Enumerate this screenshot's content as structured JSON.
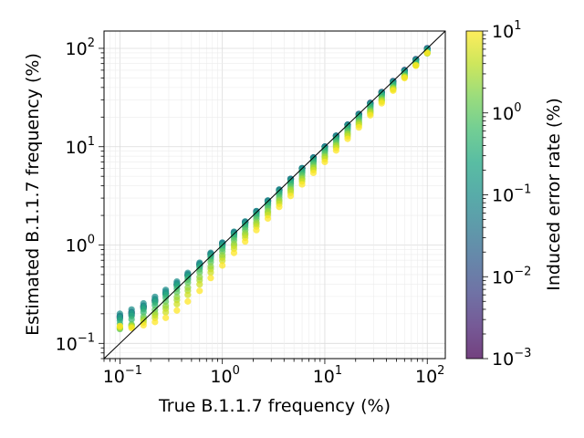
{
  "chart_data": {
    "type": "scatter",
    "title": "",
    "xlabel": "True B.1.1.7 frequency (%)",
    "ylabel": "Estimated B.1.1.7 frequency (%)",
    "x_scale": "log",
    "y_scale": "log",
    "xlim": [
      0.07,
      150
    ],
    "ylim": [
      0.07,
      150
    ],
    "grid": true,
    "x_ticks": [
      {
        "value": 0.1,
        "base": "10",
        "exp": "−1"
      },
      {
        "value": 1,
        "base": "10",
        "exp": "0"
      },
      {
        "value": 10,
        "base": "10",
        "exp": "1"
      },
      {
        "value": 100,
        "base": "10",
        "exp": "2"
      }
    ],
    "y_ticks": [
      {
        "value": 0.1,
        "base": "10",
        "exp": "−1"
      },
      {
        "value": 1,
        "base": "10",
        "exp": "0"
      },
      {
        "value": 10,
        "base": "10",
        "exp": "1"
      },
      {
        "value": 100,
        "base": "10",
        "exp": "2"
      }
    ],
    "reference_line": {
      "label": "y = x",
      "color": "#000000"
    },
    "colorbar": {
      "label": "Induced error rate (%)",
      "scale": "log",
      "range": [
        0.001,
        10
      ],
      "colormap": "viridis",
      "ticks": [
        {
          "value": 0.001,
          "base": "10",
          "exp": "−3"
        },
        {
          "value": 0.01,
          "base": "10",
          "exp": "−2"
        },
        {
          "value": 0.1,
          "base": "10",
          "exp": "−1"
        },
        {
          "value": 1,
          "base": "10",
          "exp": "0"
        },
        {
          "value": 10,
          "base": "10",
          "exp": "1"
        }
      ]
    },
    "true_frequencies": [
      0.1,
      0.13,
      0.17,
      0.22,
      0.28,
      0.36,
      0.46,
      0.6,
      0.77,
      1.0,
      1.3,
      1.67,
      2.15,
      2.78,
      3.59,
      4.64,
      6.0,
      7.74,
      10.0,
      12.9,
      16.7,
      21.5,
      27.8,
      35.9,
      46.4,
      60.0,
      77.4,
      100.0
    ],
    "error_rates": [
      0.001,
      0.003,
      0.01,
      0.03,
      0.1,
      0.2,
      0.3,
      0.5,
      1.0,
      2.0,
      3.0,
      5.0,
      10.0
    ],
    "series": [
      {
        "error_rate": 0.001,
        "ratios": [
          1.9,
          1.6,
          1.4,
          1.25,
          1.15,
          1.1,
          1.07,
          1.05,
          1.04,
          1.03,
          1.02,
          1.02,
          1.01,
          1.01,
          1.01,
          1.01,
          1.0,
          1.0,
          1.0,
          1.0,
          1.0,
          1.0,
          1.0,
          1.0,
          1.0,
          1.0,
          1.0,
          1.0
        ]
      },
      {
        "error_rate": 0.01,
        "ratios": [
          1.8,
          1.5,
          1.35,
          1.22,
          1.15,
          1.1,
          1.07,
          1.06,
          1.05,
          1.04,
          1.03,
          1.02,
          1.02,
          1.01,
          1.01,
          1.01,
          1.0,
          1.0,
          1.0,
          1.0,
          1.0,
          1.0,
          1.0,
          1.0,
          1.0,
          1.0,
          1.0,
          1.0
        ]
      },
      {
        "error_rate": 0.1,
        "ratios": [
          2.0,
          1.7,
          1.5,
          1.35,
          1.25,
          1.18,
          1.13,
          1.1,
          1.08,
          1.06,
          1.05,
          1.04,
          1.03,
          1.02,
          1.02,
          1.01,
          1.01,
          1.0,
          1.0,
          1.0,
          1.0,
          0.99,
          0.99,
          0.99,
          0.99,
          0.99,
          0.99,
          0.99
        ]
      },
      {
        "error_rate": 1.0,
        "ratios": [
          1.4,
          1.2,
          1.1,
          1.0,
          0.95,
          0.92,
          0.9,
          0.88,
          0.87,
          0.86,
          0.86,
          0.85,
          0.85,
          0.85,
          0.85,
          0.85,
          0.85,
          0.85,
          0.85,
          0.85,
          0.86,
          0.86,
          0.86,
          0.87,
          0.87,
          0.88,
          0.88,
          0.89
        ]
      },
      {
        "error_rate": 10.0,
        "ratios": [
          1.5,
          1.1,
          0.9,
          0.75,
          0.65,
          0.6,
          0.58,
          0.57,
          0.6,
          0.62,
          0.64,
          0.65,
          0.66,
          0.67,
          0.68,
          0.68,
          0.69,
          0.7,
          0.7,
          0.71,
          0.72,
          0.73,
          0.75,
          0.77,
          0.8,
          0.83,
          0.86,
          0.9
        ]
      }
    ]
  }
}
